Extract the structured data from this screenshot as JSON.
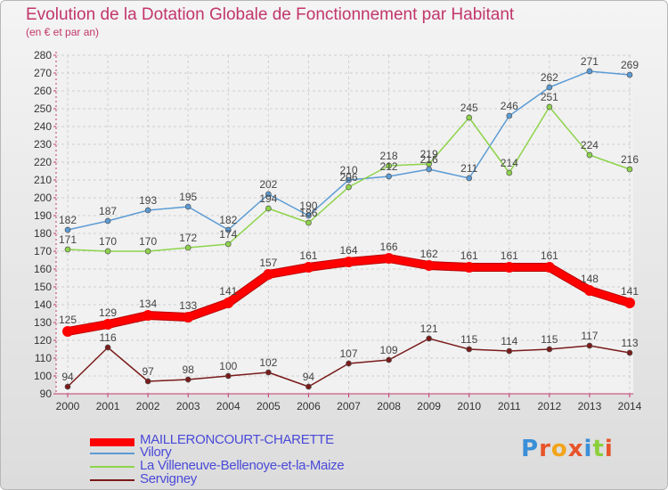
{
  "title": "Evolution de la Dotation Globale de Fonctionnement par Habitant",
  "subtitle": "(en € et par an)",
  "logo": {
    "text": "Proxiti"
  },
  "chart_data": {
    "type": "line",
    "title": "Evolution de la Dotation Globale de Fonctionnement par Habitant",
    "subtitle": "(en € et par an)",
    "xlabel": "",
    "ylabel": "",
    "ylim": [
      90,
      280
    ],
    "yticks": [
      90,
      100,
      110,
      120,
      130,
      140,
      150,
      160,
      170,
      180,
      190,
      200,
      210,
      220,
      230,
      240,
      250,
      260,
      270,
      280
    ],
    "grid": true,
    "legend_position": "bottom-left",
    "x": [
      "2000",
      "2001",
      "2002",
      "2003",
      "2004",
      "2005",
      "2006",
      "2007",
      "2008",
      "2009",
      "2010",
      "2011",
      "2012",
      "2013",
      "2014"
    ],
    "series": [
      {
        "name": "MAILLERONCOURT-CHARETTE",
        "color": "#ff0000",
        "values": [
          125,
          129,
          134,
          133,
          141,
          157,
          161,
          164,
          166,
          162,
          161,
          161,
          161,
          148,
          141
        ]
      },
      {
        "name": "Vilory",
        "color": "#5b9bd5",
        "values": [
          182,
          187,
          193,
          195,
          182,
          202,
          190,
          210,
          212,
          216,
          211,
          246,
          262,
          271,
          269
        ]
      },
      {
        "name": "La Villeneuve-Bellenoye-et-la-Maize",
        "color": "#8ed34a",
        "values": [
          171,
          170,
          170,
          172,
          174,
          194,
          186,
          206,
          218,
          219,
          245,
          214,
          251,
          224,
          216
        ]
      },
      {
        "name": "Servigney",
        "color": "#7a1a1a",
        "values": [
          94,
          116,
          97,
          98,
          100,
          102,
          94,
          107,
          109,
          121,
          115,
          114,
          115,
          117,
          113
        ]
      }
    ]
  }
}
